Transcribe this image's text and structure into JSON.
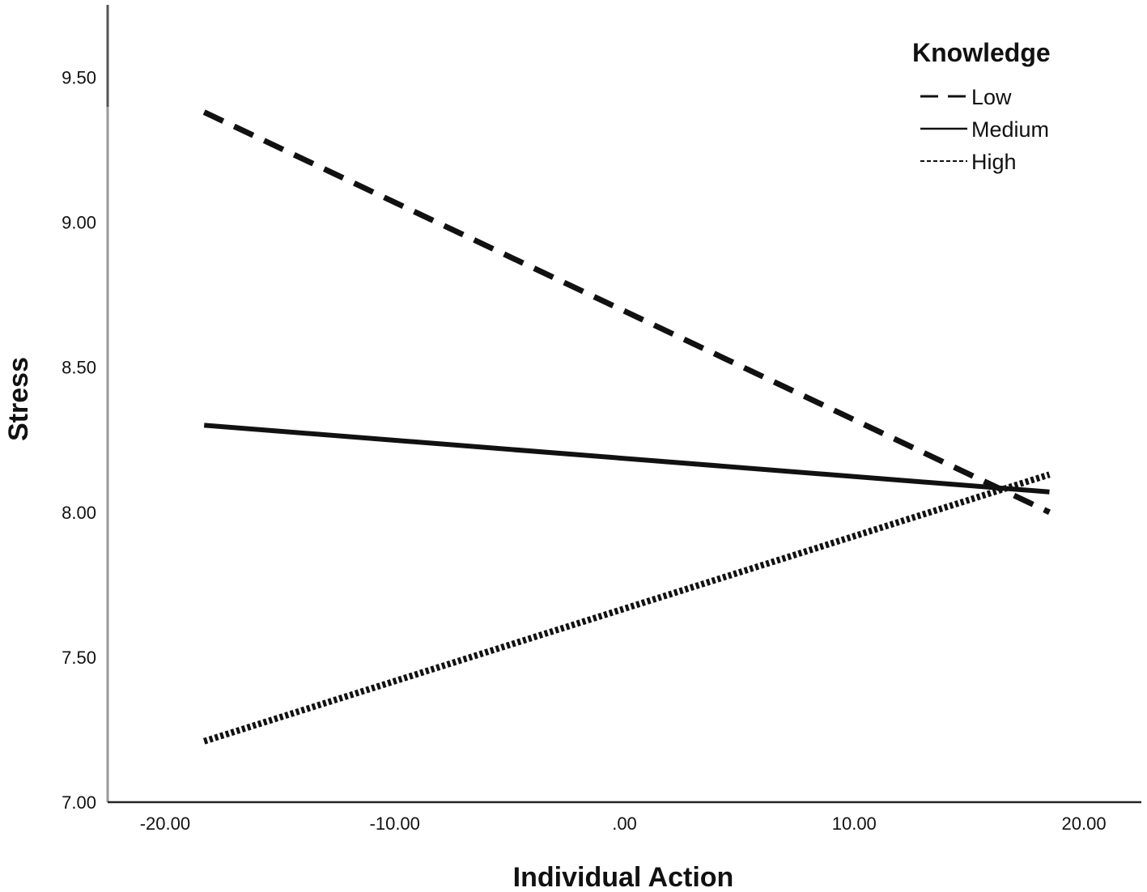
{
  "chart_data": {
    "type": "line",
    "title": "",
    "xlabel": "Individual Action",
    "ylabel": "Stress",
    "xlim": [
      -22.5,
      22.5
    ],
    "ylim": [
      7.0,
      9.75
    ],
    "xticks": [
      -20,
      -10,
      0,
      10,
      20
    ],
    "xtick_labels": [
      "-20.00",
      "-10.00",
      ".00",
      "10.00",
      "20.00"
    ],
    "yticks": [
      7.0,
      7.5,
      8.0,
      8.5,
      9.0,
      9.5
    ],
    "ytick_labels": [
      "7.00",
      "7.50",
      "8.00",
      "8.50",
      "9.00",
      "9.50"
    ],
    "grid": false,
    "legend": {
      "title": "Knowledge",
      "position": "top-right"
    },
    "series": [
      {
        "name": "Low",
        "style": "dashed",
        "x": [
          -18.3,
          18.5
        ],
        "y": [
          9.38,
          8.0
        ]
      },
      {
        "name": "Medium",
        "style": "solid",
        "x": [
          -18.3,
          18.5
        ],
        "y": [
          8.3,
          8.07
        ]
      },
      {
        "name": "High",
        "style": "dotted",
        "x": [
          -18.3,
          18.5
        ],
        "y": [
          7.21,
          8.13
        ]
      }
    ],
    "line_color": "#111111"
  }
}
